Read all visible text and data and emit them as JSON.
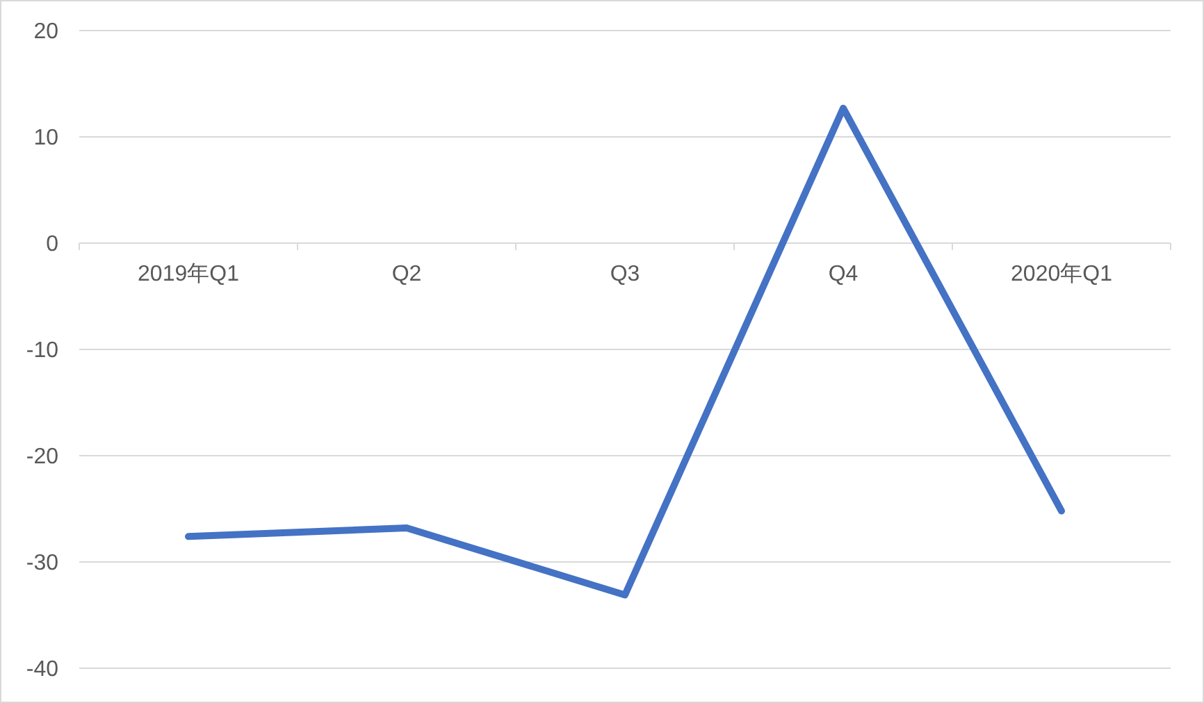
{
  "chart_data": {
    "type": "line",
    "categories": [
      "2019年Q1",
      "Q2",
      "Q3",
      "Q4",
      "2020年Q1"
    ],
    "series": [
      {
        "color": "#4472c4",
        "values": [
          -27.6,
          -26.8,
          -33.1,
          12.7,
          -25.2
        ]
      }
    ],
    "ylim": [
      -40,
      20
    ],
    "yticks": [
      -40,
      -30,
      -20,
      -10,
      0,
      10,
      20
    ],
    "grid": "y",
    "marker": "none",
    "line_style": "solid"
  }
}
